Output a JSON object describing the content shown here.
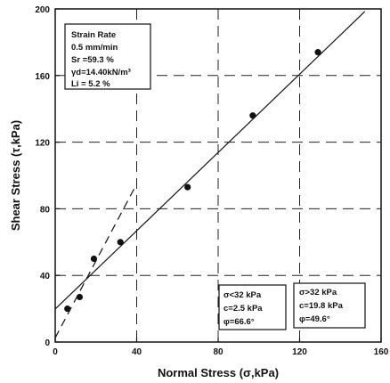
{
  "chart_data": {
    "type": "scatter",
    "xlabel": "Normal Stress (σ,kPa)",
    "ylabel": "Shear Stress (τ,kPa)",
    "xlim": [
      0,
      160
    ],
    "ylim": [
      0,
      200
    ],
    "x_ticks": [
      "0",
      "40",
      "80",
      "120",
      "160"
    ],
    "y_ticks": [
      "0",
      "40",
      "80",
      "120",
      "160",
      "200"
    ],
    "grid": "dashed",
    "points": [
      {
        "x": 6,
        "y": 20
      },
      {
        "x": 12,
        "y": 27
      },
      {
        "x": 19,
        "y": 50
      },
      {
        "x": 32,
        "y": 60
      },
      {
        "x": 65,
        "y": 93
      },
      {
        "x": 97,
        "y": 136
      },
      {
        "x": 129,
        "y": 174
      }
    ],
    "fit_lines": [
      {
        "style": "solid",
        "intercept": 19.8,
        "slope_angle_deg": 49.6,
        "x_range": [
          0,
          152
        ]
      },
      {
        "style": "dashed",
        "intercept": 2.5,
        "slope_angle_deg": 66.6,
        "x_range": [
          0,
          40
        ]
      }
    ],
    "annotations": {
      "test_conditions": [
        "Strain Rate",
        "0.5 mm/min",
        "Sr =59.3 %",
        "γd=14.40kN/m³",
        "Li = 5.2 %"
      ],
      "low_stress": [
        "σ<32 kPa",
        "c=2.5 kPa",
        "φ=66.6°"
      ],
      "high_stress": [
        "σ>32 kPa",
        "c=19.8 kPa",
        "φ=49.6°"
      ]
    }
  }
}
